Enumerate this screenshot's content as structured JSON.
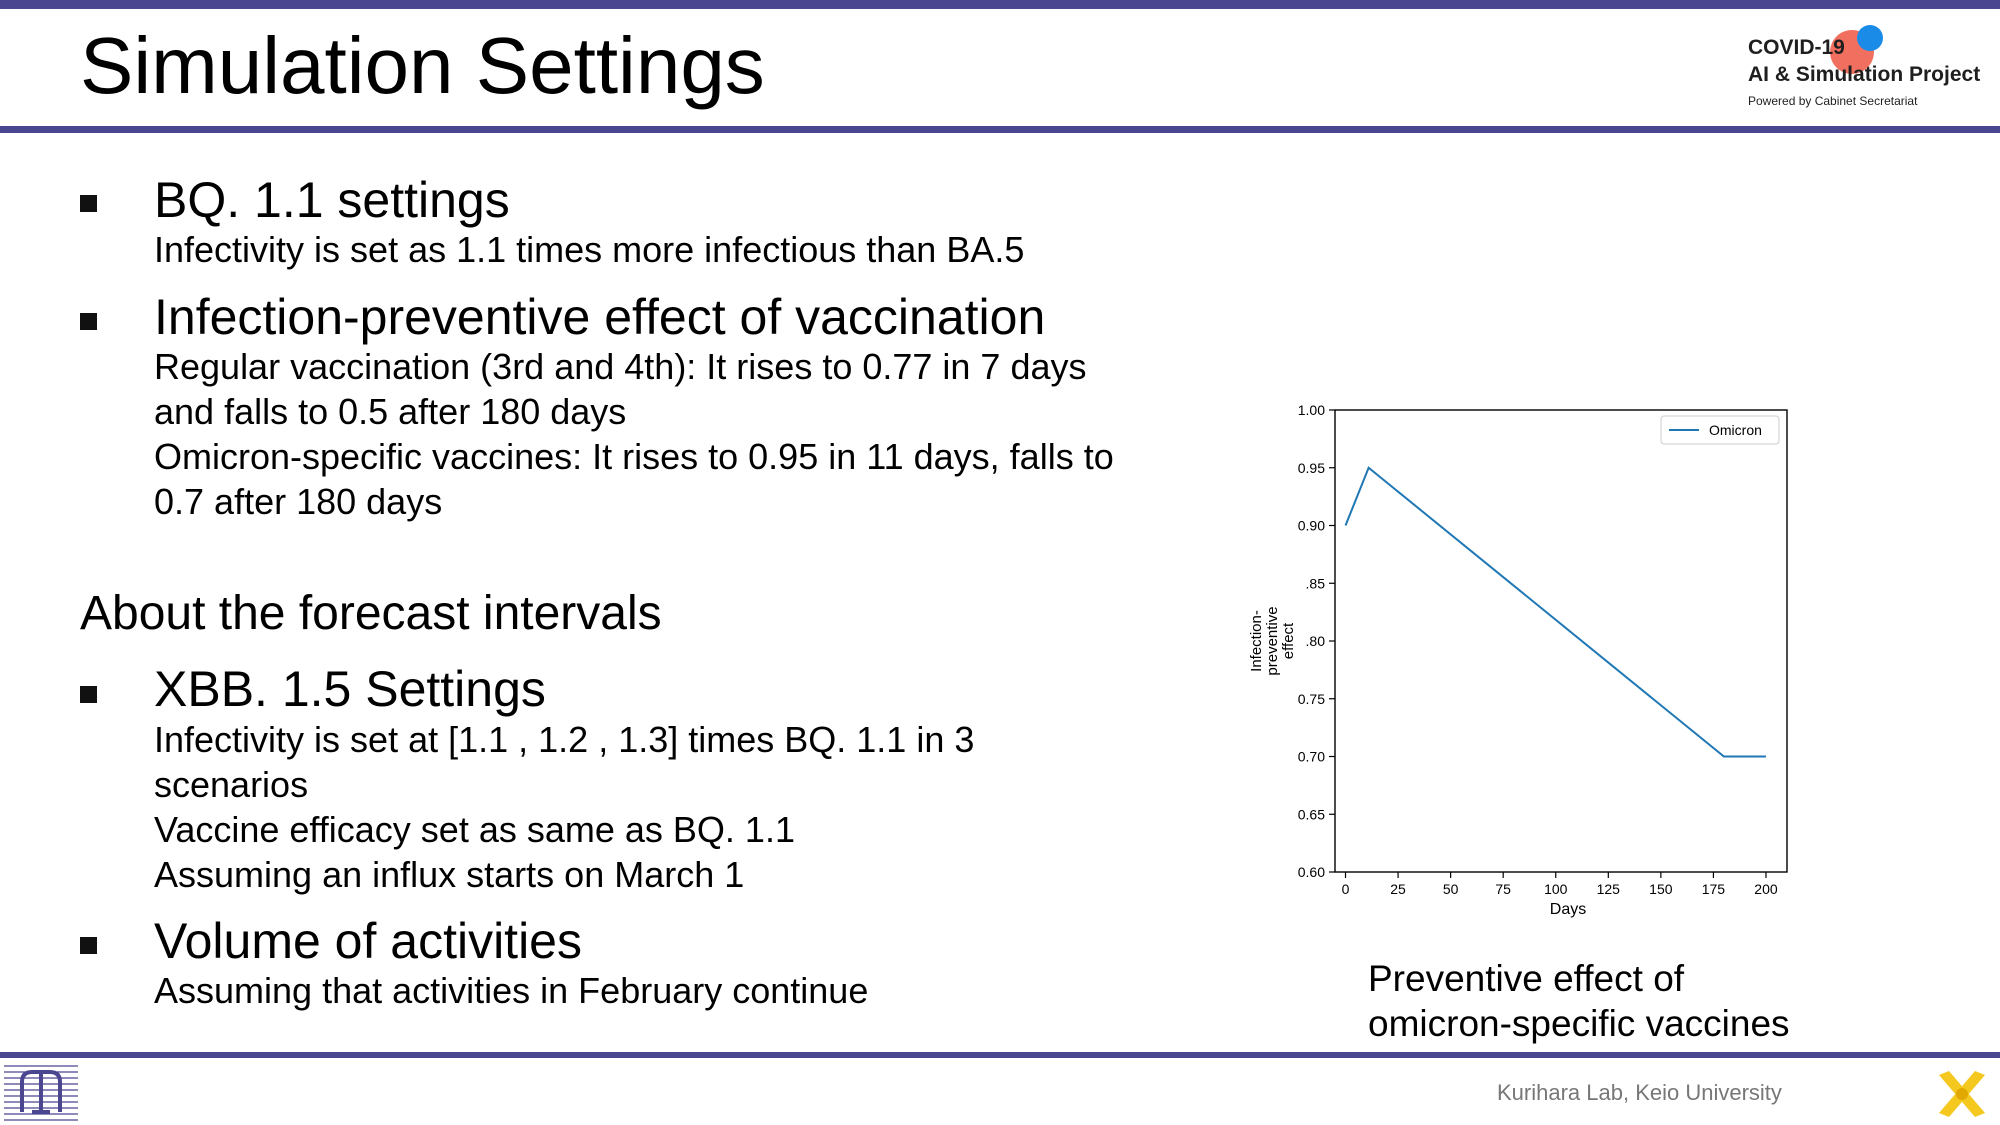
{
  "title": "Simulation Settings",
  "logo": {
    "line1": "COVID-19",
    "line2": "AI & Simulation Project",
    "line3": "Powered by Cabinet Secretariat"
  },
  "sections": {
    "bq": {
      "heading": "BQ. 1.1 settings",
      "lines": [
        "Infectivity is set as 1.1 times more infectious than BA.5"
      ]
    },
    "vaccine": {
      "heading": "Infection-preventive effect of vaccination",
      "lines": [
        "Regular vaccination (3rd and 4th): It rises to 0.77 in 7 days",
        "and falls to 0.5 after 180 days",
        "Omicron-specific vaccines: It rises to 0.95 in 11 days, falls to",
        "0.7 after 180 days"
      ]
    },
    "forecast_heading": "About the forecast intervals",
    "xbb": {
      "heading": "XBB. 1.5 Settings",
      "lines": [
        "Infectivity is set at [1.1 , 1.2 , 1.3] times BQ. 1.1 in 3",
        "scenarios",
        "Vaccine efficacy set as same as BQ. 1.1",
        "Assuming an influx starts on March 1"
      ]
    },
    "activities": {
      "heading": "Volume of activities",
      "lines": [
        "Assuming that activities in February continue"
      ]
    }
  },
  "chart_data": {
    "type": "line",
    "title": "",
    "xlabel": "Days",
    "ylabel": "Infection-preventive effect",
    "xlim": [
      -5,
      210
    ],
    "ylim": [
      0.6,
      1.0
    ],
    "xticks": [
      0,
      25,
      50,
      75,
      100,
      125,
      150,
      175,
      200
    ],
    "xtick_labels": [
      "0",
      "25",
      "50",
      "75",
      "100",
      "125",
      "150",
      "175",
      "200"
    ],
    "yticks": [
      0.6,
      0.65,
      0.7,
      0.75,
      0.8,
      0.85,
      0.9,
      0.95,
      1.0
    ],
    "ytick_labels": [
      "0.60",
      "0.65",
      "0.70",
      "0.75",
      ".80",
      ".85",
      "0.90",
      "0.95",
      "1.00"
    ],
    "series": [
      {
        "name": "Omicron",
        "color": "#1f77b4",
        "x": [
          0,
          11,
          180,
          200
        ],
        "y": [
          0.9,
          0.95,
          0.7,
          0.7
        ]
      }
    ],
    "legend": "top-right",
    "grid": false
  },
  "chart_caption": [
    "Preventive effect of",
    "omicron-specific vaccines"
  ],
  "footer": {
    "credit": "Kurihara Lab, Keio University"
  }
}
